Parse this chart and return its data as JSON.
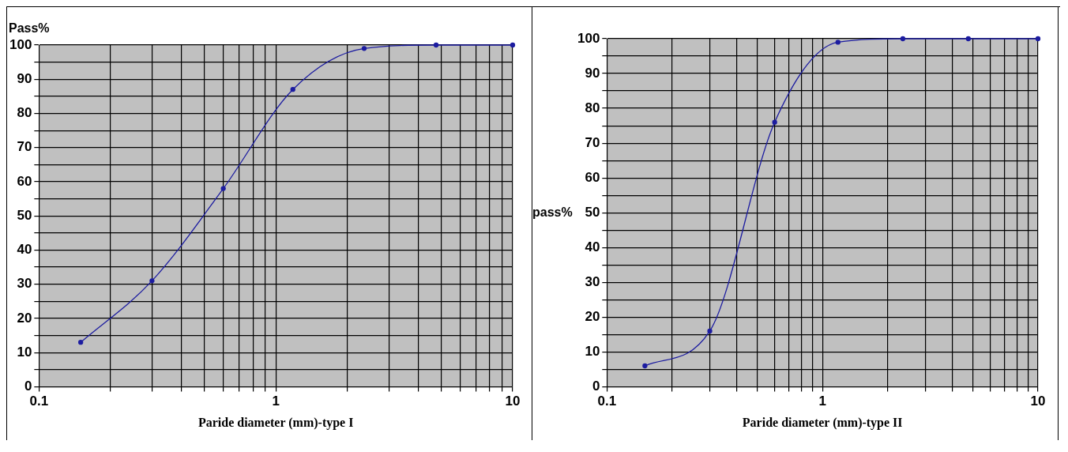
{
  "chart_data": [
    {
      "type": "line",
      "xlabel": "Paride diameter (mm)-type I",
      "ylabel": "Pass%",
      "x": [
        0.15,
        0.3,
        0.6,
        1.18,
        2.36,
        4.75,
        10
      ],
      "series": [
        {
          "color": "#1c1ca0",
          "values": [
            13,
            31,
            58,
            87,
            99,
            100,
            100
          ]
        }
      ],
      "log": "x",
      "xlim": [
        0.1,
        10
      ],
      "xticks": [
        0.1,
        {
          "value": 0.2,
          "label": null
        },
        {
          "value": 0.3,
          "label": null
        },
        {
          "value": 0.4,
          "label": null
        },
        {
          "value": 0.5,
          "label": null
        },
        {
          "value": 0.6,
          "label": null
        },
        {
          "value": 0.7,
          "label": null
        },
        {
          "value": 0.8,
          "label": null
        },
        {
          "value": 0.9,
          "label": null
        },
        1,
        {
          "value": 2,
          "label": null
        },
        {
          "value": 3,
          "label": null
        },
        {
          "value": 4,
          "label": null
        },
        {
          "value": 5,
          "label": null
        },
        {
          "value": 6,
          "label": null
        },
        {
          "value": 7,
          "label": null
        },
        {
          "value": 8,
          "label": null
        },
        {
          "value": 9,
          "label": null
        },
        10
      ],
      "ylim": [
        0,
        100
      ],
      "yticks": [
        0,
        {
          "value": 5,
          "label": null
        },
        10,
        {
          "value": 15,
          "label": null
        },
        20,
        {
          "value": 25,
          "label": null
        },
        30,
        {
          "value": 35,
          "label": null
        },
        40,
        {
          "value": 45,
          "label": null
        },
        50,
        {
          "value": 55,
          "label": null
        },
        60,
        {
          "value": 65,
          "label": null
        },
        70,
        {
          "value": 75,
          "label": null
        },
        80,
        {
          "value": 85,
          "label": null
        },
        90,
        {
          "value": 95,
          "label": null
        },
        100
      ],
      "grid": true,
      "legend": false,
      "marker": "circle",
      "line_style": "solid"
    },
    {
      "type": "line",
      "xlabel": "Paride diameter (mm)-type II",
      "ylabel": "pass%",
      "x": [
        0.15,
        0.3,
        0.6,
        1.18,
        2.36,
        4.75,
        10
      ],
      "series": [
        {
          "color": "#1c1ca0",
          "values": [
            6,
            16,
            76,
            99,
            100,
            100,
            100
          ]
        }
      ],
      "log": "x",
      "xlim": [
        0.1,
        10
      ],
      "xticks": [
        0.1,
        {
          "value": 0.2,
          "label": null
        },
        {
          "value": 0.3,
          "label": null
        },
        {
          "value": 0.4,
          "label": null
        },
        {
          "value": 0.5,
          "label": null
        },
        {
          "value": 0.6,
          "label": null
        },
        {
          "value": 0.7,
          "label": null
        },
        {
          "value": 0.8,
          "label": null
        },
        {
          "value": 0.9,
          "label": null
        },
        1,
        {
          "value": 2,
          "label": null
        },
        {
          "value": 3,
          "label": null
        },
        {
          "value": 4,
          "label": null
        },
        {
          "value": 5,
          "label": null
        },
        {
          "value": 6,
          "label": null
        },
        {
          "value": 7,
          "label": null
        },
        {
          "value": 8,
          "label": null
        },
        {
          "value": 9,
          "label": null
        },
        10
      ],
      "ylim": [
        0,
        100
      ],
      "yticks": [
        0,
        {
          "value": 5,
          "label": null
        },
        10,
        {
          "value": 15,
          "label": null
        },
        20,
        {
          "value": 25,
          "label": null
        },
        30,
        {
          "value": 35,
          "label": null
        },
        40,
        {
          "value": 45,
          "label": null
        },
        50,
        {
          "value": 55,
          "label": null
        },
        60,
        {
          "value": 65,
          "label": null
        },
        70,
        {
          "value": 75,
          "label": null
        },
        80,
        {
          "value": 85,
          "label": null
        },
        90,
        {
          "value": 95,
          "label": null
        },
        100
      ],
      "grid": true,
      "legend": false,
      "marker": "circle",
      "line_style": "solid"
    }
  ]
}
